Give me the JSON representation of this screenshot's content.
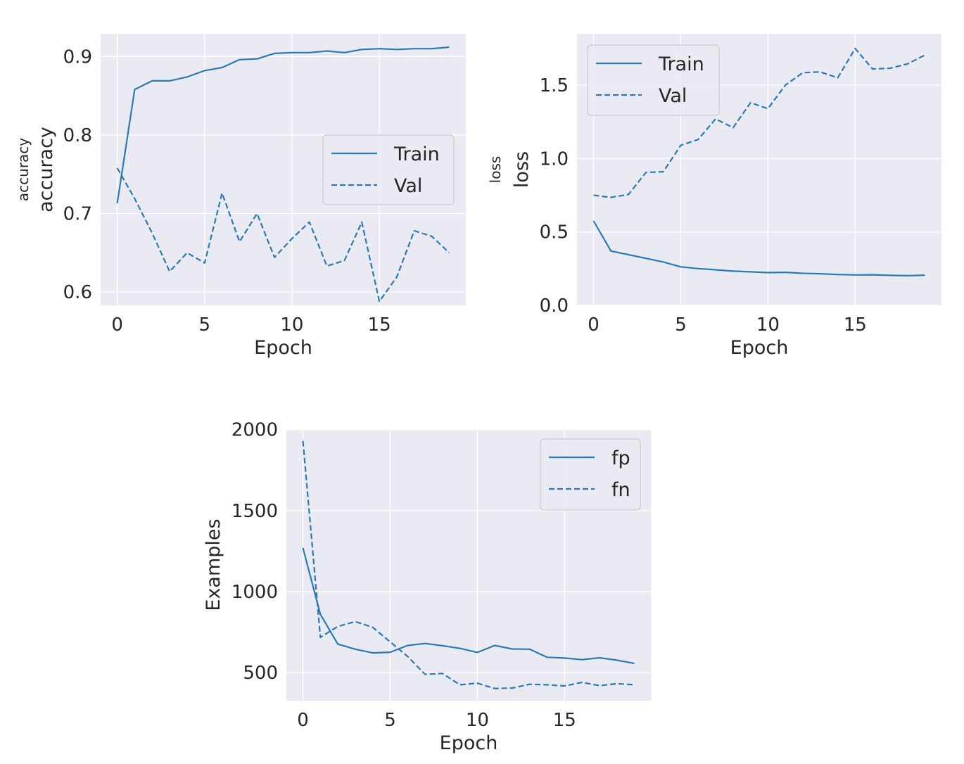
{
  "chart_data": [
    {
      "type": "line",
      "xlabel": "Epoch",
      "ylabel": "accuracy",
      "ylabel_outer": "accuracy",
      "xlim": [
        -0.95,
        19.95
      ],
      "ylim": [
        0.583,
        0.929
      ],
      "xticks": [
        0,
        5,
        10,
        15
      ],
      "yticks": [
        0.6,
        0.7,
        0.8,
        0.9
      ],
      "ytick_labels": [
        "0.6",
        "0.7",
        "0.8",
        "0.9"
      ],
      "grid": true,
      "legend_position": "center-right",
      "x": [
        0,
        1,
        2,
        3,
        4,
        5,
        6,
        7,
        8,
        9,
        10,
        11,
        12,
        13,
        14,
        15,
        16,
        17,
        18,
        19
      ],
      "series": [
        {
          "name": "Train",
          "style": "solid",
          "values": [
            0.713,
            0.858,
            0.869,
            0.869,
            0.874,
            0.882,
            0.886,
            0.896,
            0.897,
            0.904,
            0.905,
            0.905,
            0.907,
            0.905,
            0.909,
            0.91,
            0.909,
            0.91,
            0.91,
            0.912
          ]
        },
        {
          "name": "Val",
          "style": "dashed",
          "values": [
            0.758,
            0.719,
            0.675,
            0.626,
            0.65,
            0.637,
            0.726,
            0.664,
            0.7,
            0.644,
            0.668,
            0.689,
            0.633,
            0.64,
            0.689,
            0.588,
            0.619,
            0.678,
            0.671,
            0.65
          ]
        }
      ]
    },
    {
      "type": "line",
      "xlabel": "Epoch",
      "ylabel": "loss",
      "ylabel_outer": "loss",
      "xlim": [
        -0.95,
        19.95
      ],
      "ylim": [
        0.0,
        1.85
      ],
      "xticks": [
        0,
        5,
        10,
        15
      ],
      "yticks": [
        0.0,
        0.5,
        1.0,
        1.5
      ],
      "ytick_labels": [
        "0.0",
        "0.5",
        "1.0",
        "1.5"
      ],
      "grid": true,
      "legend_position": "top-left",
      "x": [
        0,
        1,
        2,
        3,
        4,
        5,
        6,
        7,
        8,
        9,
        10,
        11,
        12,
        13,
        14,
        15,
        16,
        17,
        18,
        19
      ],
      "series": [
        {
          "name": "Train",
          "style": "solid",
          "values": [
            0.575,
            0.37,
            0.345,
            0.32,
            0.295,
            0.262,
            0.25,
            0.242,
            0.233,
            0.228,
            0.223,
            0.225,
            0.218,
            0.215,
            0.21,
            0.207,
            0.208,
            0.204,
            0.202,
            0.205
          ]
        },
        {
          "name": "Val",
          "style": "dashed",
          "values": [
            0.75,
            0.735,
            0.755,
            0.905,
            0.91,
            1.09,
            1.13,
            1.27,
            1.21,
            1.38,
            1.34,
            1.5,
            1.585,
            1.59,
            1.55,
            1.75,
            1.61,
            1.615,
            1.645,
            1.705
          ]
        }
      ]
    },
    {
      "type": "line",
      "xlabel": "Epoch",
      "ylabel": "Examples",
      "xlim": [
        -0.95,
        19.95
      ],
      "ylim": [
        327,
        2003
      ],
      "xticks": [
        0,
        5,
        10,
        15
      ],
      "yticks": [
        500,
        1000,
        1500,
        2000
      ],
      "ytick_labels": [
        "500",
        "1000",
        "1500",
        "2000"
      ],
      "grid": true,
      "legend_position": "top-right",
      "x": [
        0,
        1,
        2,
        3,
        4,
        5,
        6,
        7,
        8,
        9,
        10,
        11,
        12,
        13,
        14,
        15,
        16,
        17,
        18,
        19
      ],
      "series": [
        {
          "name": "fp",
          "style": "solid",
          "values": [
            1270,
            860,
            676,
            645,
            622,
            626,
            668,
            680,
            666,
            650,
            625,
            668,
            646,
            645,
            595,
            590,
            580,
            592,
            577,
            557
          ]
        },
        {
          "name": "fn",
          "style": "dashed",
          "values": [
            1930,
            718,
            785,
            815,
            780,
            690,
            600,
            490,
            495,
            425,
            435,
            402,
            405,
            428,
            425,
            418,
            440,
            420,
            432,
            425
          ]
        }
      ]
    }
  ],
  "colors": {
    "plot_bg": "#eaeaf2",
    "grid": "#ffffff",
    "line": "#2a7ab8",
    "text": "#262626"
  }
}
